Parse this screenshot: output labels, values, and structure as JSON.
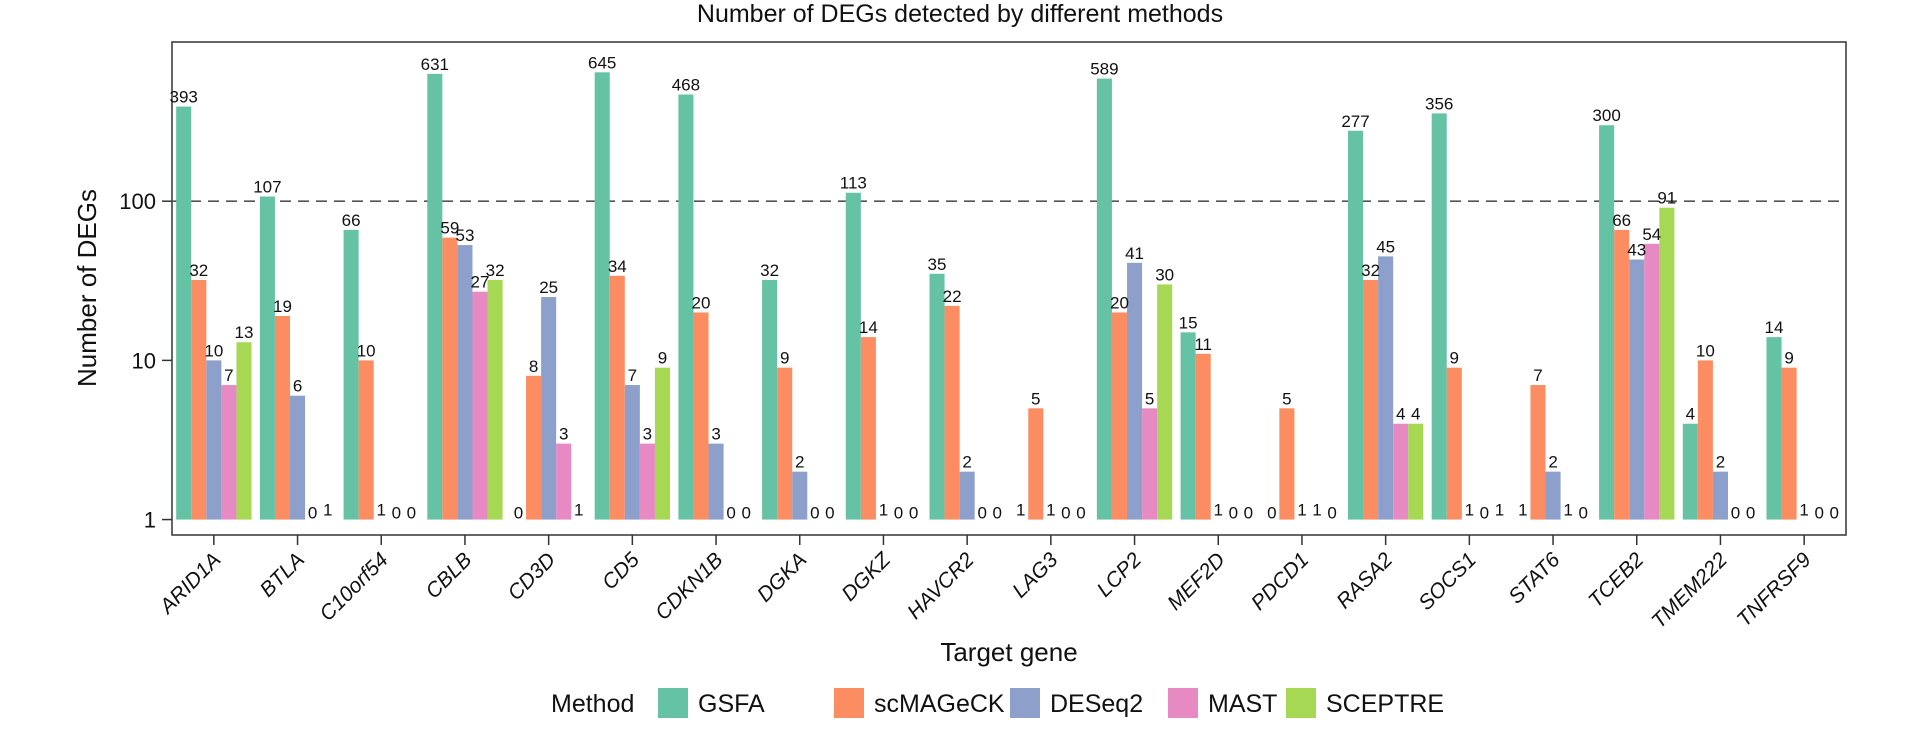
{
  "chart_data": {
    "type": "bar",
    "title": "Number of DEGs detected by different methods",
    "xlabel": "Target gene",
    "ylabel": "Number of DEGs",
    "yscale": "log",
    "ylim": [
      0.8,
      1000
    ],
    "yticks": [
      1,
      10,
      100
    ],
    "zero_value_position": 1,
    "reference_line": {
      "value": 100,
      "style": "dashed"
    },
    "grid": false,
    "legend_title": "Method",
    "legend_position": "bottom",
    "categories": [
      "ARID1A",
      "BTLA",
      "C10orf54",
      "CBLB",
      "CD3D",
      "CD5",
      "CDKN1B",
      "DGKA",
      "DGKZ",
      "HAVCR2",
      "LAG3",
      "LCP2",
      "MEF2D",
      "PDCD1",
      "RASA2",
      "SOCS1",
      "STAT6",
      "TCEB2",
      "TMEM222",
      "TNFRSF9"
    ],
    "series": [
      {
        "name": "GSFA",
        "color": "#66c2a5",
        "values": [
          393,
          107,
          66,
          631,
          0,
          645,
          468,
          32,
          113,
          35,
          1,
          589,
          15,
          0,
          277,
          356,
          1,
          300,
          4,
          14
        ]
      },
      {
        "name": "scMAGeCK",
        "color": "#fc8d62",
        "values": [
          32,
          19,
          10,
          59,
          8,
          34,
          20,
          9,
          14,
          22,
          5,
          20,
          11,
          5,
          32,
          9,
          7,
          66,
          10,
          9
        ]
      },
      {
        "name": "DESeq2",
        "color": "#8da0cb",
        "values": [
          10,
          6,
          1,
          53,
          25,
          7,
          3,
          2,
          1,
          2,
          1,
          41,
          1,
          1,
          45,
          1,
          2,
          43,
          2,
          1
        ]
      },
      {
        "name": "MAST",
        "color": "#e78ac3",
        "values": [
          7,
          0,
          0,
          27,
          3,
          3,
          0,
          0,
          0,
          0,
          0,
          5,
          0,
          1,
          4,
          0,
          1,
          54,
          0,
          0
        ]
      },
      {
        "name": "SCEPTRE",
        "color": "#a6d854",
        "values": [
          13,
          1,
          0,
          32,
          1,
          9,
          0,
          0,
          0,
          0,
          0,
          30,
          0,
          0,
          4,
          1,
          0,
          91,
          0,
          0
        ]
      }
    ]
  }
}
